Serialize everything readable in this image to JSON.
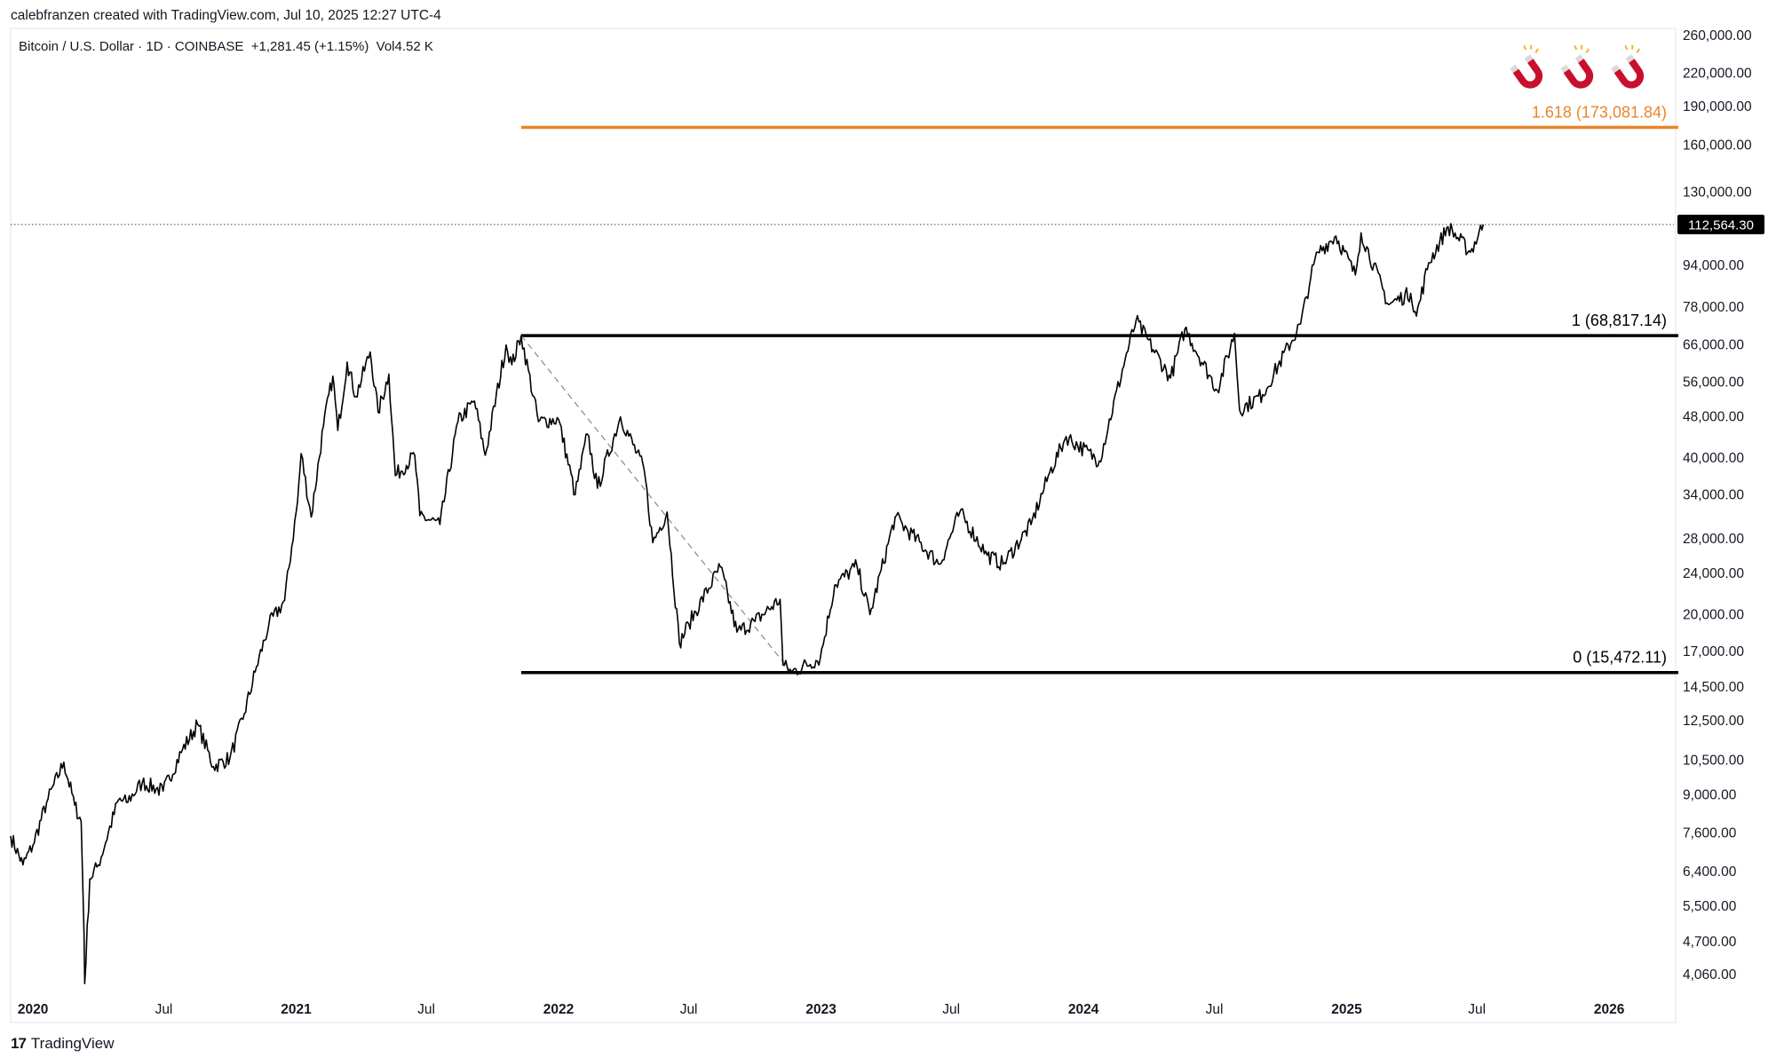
{
  "header": {
    "creator_line": "calebfranzen created with TradingView.com, Jul 10, 2025 12:27 UTC-4",
    "symbol_line": "Bitcoin / U.S. Dollar · 1D · COINBASE  +1,281.45 (+1.15%)  Vol4.52 K"
  },
  "footer": {
    "brand": "TradingView",
    "logo_text": "17"
  },
  "icons": [
    "magnet-icon",
    "magnet-icon",
    "magnet-icon"
  ],
  "colors": {
    "price": "#000000",
    "fib_extension": "#e8862a",
    "current_price_tag": "#000000",
    "grid_border": "#e0e3eb"
  },
  "chart_data": {
    "type": "line",
    "title": "",
    "scale": "log",
    "ylim": [
      3700,
      300000
    ],
    "xlim": [
      "2019-12-01",
      "2026-04-01"
    ],
    "y_ticks": [
      {
        "value": 260000,
        "label": "260,000.00"
      },
      {
        "value": 220000,
        "label": "220,000.00"
      },
      {
        "value": 190000,
        "label": "190,000.00"
      },
      {
        "value": 160000,
        "label": "160,000.00"
      },
      {
        "value": 130000,
        "label": "130,000.00"
      },
      {
        "value": 94000,
        "label": "94,000.00"
      },
      {
        "value": 78000,
        "label": "78,000.00"
      },
      {
        "value": 66000,
        "label": "66,000.00"
      },
      {
        "value": 56000,
        "label": "56,000.00"
      },
      {
        "value": 48000,
        "label": "48,000.00"
      },
      {
        "value": 40000,
        "label": "40,000.00"
      },
      {
        "value": 34000,
        "label": "34,000.00"
      },
      {
        "value": 28000,
        "label": "28,000.00"
      },
      {
        "value": 24000,
        "label": "24,000.00"
      },
      {
        "value": 20000,
        "label": "20,000.00"
      },
      {
        "value": 17000,
        "label": "17,000.00"
      },
      {
        "value": 14500,
        "label": "14,500.00"
      },
      {
        "value": 12500,
        "label": "12,500.00"
      },
      {
        "value": 10500,
        "label": "10,500.00"
      },
      {
        "value": 9000,
        "label": "9,000.00"
      },
      {
        "value": 7600,
        "label": "7,600.00"
      },
      {
        "value": 6400,
        "label": "6,400.00"
      },
      {
        "value": 5500,
        "label": "5,500.00"
      },
      {
        "value": 4700,
        "label": "4,700.00"
      },
      {
        "value": 4060,
        "label": "4,060.00"
      }
    ],
    "x_ticks": [
      {
        "date": "2020-01-01",
        "label": "2020",
        "year": true
      },
      {
        "date": "2020-07-01",
        "label": "Jul",
        "year": false
      },
      {
        "date": "2021-01-01",
        "label": "2021",
        "year": true
      },
      {
        "date": "2021-07-01",
        "label": "Jul",
        "year": false
      },
      {
        "date": "2022-01-01",
        "label": "2022",
        "year": true
      },
      {
        "date": "2022-07-01",
        "label": "Jul",
        "year": false
      },
      {
        "date": "2023-01-01",
        "label": "2023",
        "year": true
      },
      {
        "date": "2023-07-01",
        "label": "Jul",
        "year": false
      },
      {
        "date": "2024-01-01",
        "label": "2024",
        "year": true
      },
      {
        "date": "2024-07-01",
        "label": "Jul",
        "year": false
      },
      {
        "date": "2025-01-01",
        "label": "2025",
        "year": true
      },
      {
        "date": "2025-07-01",
        "label": "Jul",
        "year": false
      },
      {
        "date": "2026-01-01",
        "label": "2026",
        "year": true
      }
    ],
    "current_price": {
      "value": 112564.3,
      "label": "112,564.30"
    },
    "fib_levels": [
      {
        "ratio": "1.618",
        "value": 173081.84,
        "label": "1.618 (173,081.84)",
        "color": "#e8862a",
        "start": "2021-11-10"
      },
      {
        "ratio": "1",
        "value": 68817.14,
        "label": "1 (68,817.14)",
        "color": "#000000",
        "start": "2021-11-10"
      },
      {
        "ratio": "0",
        "value": 15472.11,
        "label": "0 (15,472.11)",
        "color": "#000000",
        "start": "2021-11-10"
      }
    ],
    "trend_line": {
      "from": {
        "date": "2021-11-10",
        "value": 68817.14
      },
      "to": {
        "date": "2022-11-21",
        "value": 15472.11
      }
    },
    "series": [
      {
        "points": [
          [
            "2019-12-01",
            7500
          ],
          [
            "2019-12-18",
            6600
          ],
          [
            "2020-01-01",
            7200
          ],
          [
            "2020-01-20",
            8700
          ],
          [
            "2020-02-13",
            10400
          ],
          [
            "2020-02-28",
            8600
          ],
          [
            "2020-03-08",
            8000
          ],
          [
            "2020-03-12",
            4900
          ],
          [
            "2020-03-13",
            3900
          ],
          [
            "2020-03-20",
            6200
          ],
          [
            "2020-04-01",
            6600
          ],
          [
            "2020-04-29",
            8800
          ],
          [
            "2020-05-10",
            8700
          ],
          [
            "2020-06-01",
            9500
          ],
          [
            "2020-06-30",
            9150
          ],
          [
            "2020-07-27",
            11000
          ],
          [
            "2020-08-17",
            12300
          ],
          [
            "2020-09-08",
            10200
          ],
          [
            "2020-10-01",
            10600
          ],
          [
            "2020-10-21",
            12900
          ],
          [
            "2020-11-05",
            15500
          ],
          [
            "2020-11-24",
            19100
          ],
          [
            "2020-12-16",
            21300
          ],
          [
            "2021-01-03",
            33000
          ],
          [
            "2021-01-08",
            40800
          ],
          [
            "2021-01-22",
            30800
          ],
          [
            "2021-02-08",
            46200
          ],
          [
            "2021-02-21",
            57500
          ],
          [
            "2021-02-28",
            45200
          ],
          [
            "2021-03-13",
            61200
          ],
          [
            "2021-03-25",
            52500
          ],
          [
            "2021-04-14",
            64000
          ],
          [
            "2021-04-25",
            49000
          ],
          [
            "2021-05-10",
            58000
          ],
          [
            "2021-05-19",
            37000
          ],
          [
            "2021-06-15",
            40500
          ],
          [
            "2021-06-22",
            31000
          ],
          [
            "2021-07-20",
            29800
          ],
          [
            "2021-08-14",
            47000
          ],
          [
            "2021-09-06",
            51500
          ],
          [
            "2021-09-21",
            40500
          ],
          [
            "2021-10-20",
            66000
          ],
          [
            "2021-10-28",
            60500
          ],
          [
            "2021-11-10",
            68800
          ],
          [
            "2021-12-04",
            47000
          ],
          [
            "2022-01-01",
            47500
          ],
          [
            "2022-01-24",
            34000
          ],
          [
            "2022-02-10",
            44500
          ],
          [
            "2022-02-24",
            35000
          ],
          [
            "2022-03-28",
            48000
          ],
          [
            "2022-04-30",
            38000
          ],
          [
            "2022-05-12",
            27500
          ],
          [
            "2022-06-01",
            31500
          ],
          [
            "2022-06-18",
            17600
          ],
          [
            "2022-07-01",
            19200
          ],
          [
            "2022-08-14",
            24700
          ],
          [
            "2022-09-06",
            18500
          ],
          [
            "2022-10-01",
            19400
          ],
          [
            "2022-11-05",
            21400
          ],
          [
            "2022-11-09",
            16000
          ],
          [
            "2022-11-21",
            15500
          ],
          [
            "2022-12-31",
            16500
          ],
          [
            "2023-01-20",
            22800
          ],
          [
            "2023-02-20",
            24800
          ],
          [
            "2023-03-10",
            20000
          ],
          [
            "2023-04-14",
            30800
          ],
          [
            "2023-06-15",
            25000
          ],
          [
            "2023-07-13",
            31500
          ],
          [
            "2023-08-20",
            26000
          ],
          [
            "2023-09-11",
            25000
          ],
          [
            "2023-10-20",
            29800
          ],
          [
            "2023-11-15",
            37500
          ],
          [
            "2023-12-08",
            44000
          ],
          [
            "2024-01-23",
            39500
          ],
          [
            "2024-02-28",
            62000
          ],
          [
            "2024-03-14",
            73500
          ],
          [
            "2024-05-01",
            57000
          ],
          [
            "2024-05-21",
            71000
          ],
          [
            "2024-07-05",
            54000
          ],
          [
            "2024-07-29",
            69500
          ],
          [
            "2024-08-05",
            49500
          ],
          [
            "2024-09-06",
            53000
          ],
          [
            "2024-10-29",
            72500
          ],
          [
            "2024-11-12",
            89000
          ],
          [
            "2024-11-22",
            99500
          ],
          [
            "2024-12-17",
            107000
          ],
          [
            "2025-01-13",
            90000
          ],
          [
            "2025-01-21",
            108500
          ],
          [
            "2025-02-28",
            79000
          ],
          [
            "2025-03-31",
            83000
          ],
          [
            "2025-04-08",
            75000
          ],
          [
            "2025-04-25",
            95000
          ],
          [
            "2025-05-22",
            111500
          ],
          [
            "2025-06-22",
            99500
          ],
          [
            "2025-07-10",
            112564
          ]
        ]
      }
    ]
  }
}
